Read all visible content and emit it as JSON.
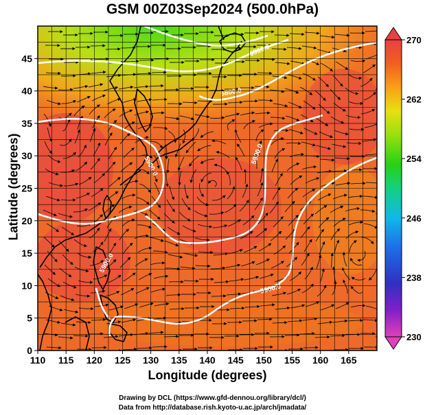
{
  "title": "GSM 00Z03Sep2024 (500.0hPa)",
  "axes": {
    "xlabel": "Longitude (degrees)",
    "ylabel": "Latitude  (degrees)",
    "x_ticks": [
      "110",
      "115",
      "120",
      "125",
      "130",
      "135",
      "140",
      "145",
      "150",
      "155",
      "160",
      "165"
    ],
    "y_ticks": [
      "0",
      "5",
      "10",
      "15",
      "20",
      "25",
      "30",
      "35",
      "40",
      "45"
    ],
    "xlim": [
      110,
      170
    ],
    "ylim": [
      0,
      50
    ]
  },
  "colorbar": {
    "labels": [
      "270",
      "262",
      "254",
      "246",
      "238",
      "230"
    ],
    "range": [
      230,
      270
    ],
    "colors": [
      "#e040b8",
      "#8020c8",
      "#3030c0",
      "#1e6ee8",
      "#10b8e8",
      "#14d080",
      "#28d014",
      "#98e010",
      "#e8e010",
      "#f8a018",
      "#f06020",
      "#e84040"
    ]
  },
  "map": {
    "field_colors": {
      "warm": "#e84a3c",
      "orange": "#f0761e",
      "yellow": "#e8e018",
      "green": "#50d41c"
    },
    "contour_labels": [
      "5900.0",
      "5800.0",
      "5900.0",
      "5900.0",
      "5900.0",
      "5900.0"
    ],
    "contour_color": "#ffffff",
    "coast_color": "#000000"
  },
  "credits": {
    "line1": "Drawing by DCL (https://www.gfd-dennou.org/library/dcl/)",
    "line2": "Data from http://database.rish.kyoto-u.ac.jp/arch/jmadata/"
  }
}
